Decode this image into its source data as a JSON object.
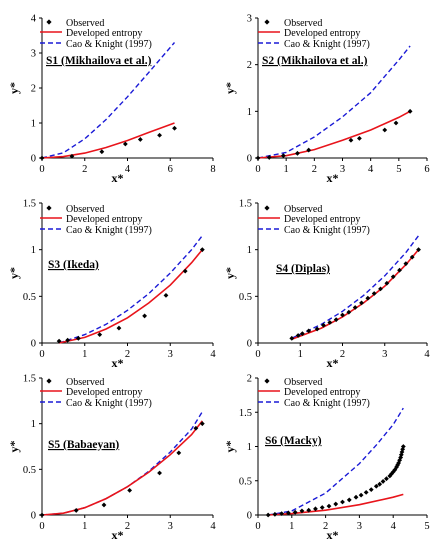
{
  "legend": {
    "observed": "Observed",
    "developed": "Developed entropy",
    "cao": "Cao & Knight (1997)"
  },
  "colors": {
    "observed": "#000000",
    "developed": "#e8141b",
    "cao": "#1a1ad6"
  },
  "chart_data": [
    {
      "type": "line",
      "label": "S1 (Mikhailova et al.)",
      "xlabel": "x*",
      "ylabel": "y*",
      "xlim": [
        0,
        8
      ],
      "ylim": [
        0,
        4
      ],
      "xticks": [
        0,
        2,
        4,
        6,
        8
      ],
      "yticks": [
        0,
        1,
        2,
        3,
        4
      ],
      "series": [
        {
          "name": "Observed",
          "x": [
            0,
            1.4,
            2.8,
            3.9,
            4.6,
            5.5,
            6.2
          ],
          "y": [
            0,
            0.05,
            0.18,
            0.4,
            0.53,
            0.65,
            0.85
          ]
        },
        {
          "name": "Developed entropy",
          "x": [
            0,
            1,
            2,
            3,
            4,
            5,
            6.2
          ],
          "y": [
            0,
            0.04,
            0.14,
            0.3,
            0.5,
            0.73,
            1.0
          ]
        },
        {
          "name": "Cao & Knight (1997)",
          "x": [
            0,
            1,
            2,
            3,
            4,
            5,
            6.2
          ],
          "y": [
            0,
            0.15,
            0.55,
            1.1,
            1.75,
            2.45,
            3.3
          ]
        }
      ]
    },
    {
      "type": "line",
      "label": "S2 (Mikhailova et al.)",
      "xlabel": "x*",
      "ylabel": "y*",
      "xlim": [
        0,
        6
      ],
      "ylim": [
        0,
        3
      ],
      "xticks": [
        0,
        1,
        2,
        3,
        4,
        5,
        6
      ],
      "yticks": [
        0,
        1,
        2,
        3
      ],
      "series": [
        {
          "name": "Observed",
          "x": [
            0,
            0.4,
            0.9,
            1.4,
            1.8,
            3.3,
            3.6,
            4.5,
            4.9,
            5.4
          ],
          "y": [
            0,
            0.01,
            0.05,
            0.1,
            0.17,
            0.38,
            0.42,
            0.6,
            0.75,
            1.0
          ]
        },
        {
          "name": "Developed entropy",
          "x": [
            0,
            1,
            2,
            3,
            4,
            5,
            5.4
          ],
          "y": [
            0,
            0.05,
            0.18,
            0.38,
            0.6,
            0.87,
            1.0
          ]
        },
        {
          "name": "Cao & Knight (1997)",
          "x": [
            0,
            1,
            2,
            3,
            4,
            5,
            5.4
          ],
          "y": [
            0,
            0.12,
            0.45,
            0.88,
            1.4,
            2.1,
            2.4
          ]
        }
      ]
    },
    {
      "type": "line",
      "label": "S3 (Ikeda)",
      "xlabel": "x*",
      "ylabel": "y*",
      "xlim": [
        0,
        4
      ],
      "ylim": [
        0,
        1.5
      ],
      "xticks": [
        0,
        1,
        2,
        3,
        4
      ],
      "yticks": [
        0,
        0.5,
        1,
        1.5
      ],
      "series": [
        {
          "name": "Observed",
          "x": [
            0.4,
            0.6,
            0.85,
            1.35,
            1.8,
            2.4,
            2.9,
            3.35,
            3.75
          ],
          "y": [
            0.02,
            0.03,
            0.05,
            0.09,
            0.16,
            0.29,
            0.51,
            0.77,
            1.0
          ]
        },
        {
          "name": "Developed entropy",
          "x": [
            0.4,
            1,
            1.5,
            2,
            2.5,
            3,
            3.5,
            3.75
          ],
          "y": [
            0,
            0.06,
            0.15,
            0.27,
            0.43,
            0.62,
            0.86,
            1.0
          ]
        },
        {
          "name": "Cao & Knight (1997)",
          "x": [
            0.4,
            1,
            1.5,
            2,
            2.5,
            3,
            3.5,
            3.75
          ],
          "y": [
            0,
            0.09,
            0.2,
            0.35,
            0.53,
            0.75,
            1.0,
            1.15
          ]
        }
      ]
    },
    {
      "type": "line",
      "label": "S4 (Diplas)",
      "xlabel": "x*",
      "ylabel": "y*",
      "xlim": [
        0,
        4
      ],
      "ylim": [
        0,
        1.5
      ],
      "xticks": [
        0,
        1,
        2,
        3,
        4
      ],
      "yticks": [
        0,
        0.5,
        1,
        1.5
      ],
      "series": [
        {
          "name": "Observed",
          "x": [
            0.8,
            0.95,
            1.05,
            1.2,
            1.4,
            1.55,
            1.7,
            1.85,
            2.0,
            2.15,
            2.3,
            2.45,
            2.6,
            2.75,
            2.9,
            3.05,
            3.2,
            3.35,
            3.5,
            3.65,
            3.8
          ],
          "y": [
            0.05,
            0.08,
            0.1,
            0.13,
            0.15,
            0.19,
            0.22,
            0.25,
            0.3,
            0.33,
            0.38,
            0.43,
            0.48,
            0.53,
            0.58,
            0.64,
            0.71,
            0.78,
            0.85,
            0.92,
            1.0
          ]
        },
        {
          "name": "Developed entropy",
          "x": [
            0.8,
            1.5,
            2,
            2.5,
            3,
            3.5,
            3.8
          ],
          "y": [
            0.04,
            0.16,
            0.28,
            0.43,
            0.61,
            0.84,
            1.0
          ]
        },
        {
          "name": "Cao & Knight (1997)",
          "x": [
            0.8,
            1.5,
            2,
            2.5,
            3,
            3.5,
            3.8
          ],
          "y": [
            0.05,
            0.2,
            0.34,
            0.51,
            0.72,
            0.97,
            1.15
          ]
        }
      ]
    },
    {
      "type": "line",
      "label": "S5 (Babaeyan)",
      "xlabel": "x*",
      "ylabel": "y*",
      "xlim": [
        0,
        4
      ],
      "ylim": [
        0,
        1.5
      ],
      "xticks": [
        0,
        1,
        2,
        3,
        4
      ],
      "yticks": [
        0,
        0.5,
        1,
        1.5
      ],
      "series": [
        {
          "name": "Observed",
          "x": [
            0,
            0.8,
            1.45,
            2.05,
            2.75,
            3.2,
            3.6,
            3.75
          ],
          "y": [
            0,
            0.05,
            0.11,
            0.27,
            0.46,
            0.68,
            0.95,
            1.0
          ]
        },
        {
          "name": "Developed entropy",
          "x": [
            0,
            0.5,
            1,
            1.5,
            2,
            2.5,
            3,
            3.5,
            3.75
          ],
          "y": [
            0,
            0.02,
            0.08,
            0.18,
            0.31,
            0.47,
            0.66,
            0.88,
            1.03
          ]
        },
        {
          "name": "Cao & Knight (1997)",
          "x": [
            0,
            0.5,
            1,
            1.5,
            2,
            2.5,
            3,
            3.5,
            3.75
          ],
          "y": [
            0,
            0.02,
            0.08,
            0.18,
            0.31,
            0.48,
            0.69,
            0.94,
            1.13
          ]
        }
      ]
    },
    {
      "type": "line",
      "label": "S6 (Macky)",
      "xlabel": "x*",
      "ylabel": "y*",
      "xlim": [
        0,
        5
      ],
      "ylim": [
        0,
        2
      ],
      "xticks": [
        0,
        1,
        2,
        3,
        4,
        5
      ],
      "yticks": [
        0,
        0.5,
        1,
        1.5,
        2
      ],
      "series": [
        {
          "name": "Observed",
          "x": [
            0.3,
            0.5,
            0.7,
            0.9,
            1.1,
            1.3,
            1.5,
            1.7,
            1.9,
            2.1,
            2.3,
            2.5,
            2.7,
            2.9,
            3.05,
            3.2,
            3.35,
            3.5,
            3.6,
            3.7,
            3.8,
            3.9,
            3.95,
            4.0,
            4.05,
            4.1,
            4.13,
            4.16,
            4.19,
            4.22,
            4.24,
            4.26,
            4.28,
            4.3
          ],
          "y": [
            0,
            0.01,
            0.02,
            0.03,
            0.04,
            0.06,
            0.07,
            0.09,
            0.11,
            0.13,
            0.16,
            0.19,
            0.22,
            0.26,
            0.29,
            0.33,
            0.37,
            0.42,
            0.45,
            0.49,
            0.53,
            0.57,
            0.6,
            0.63,
            0.66,
            0.7,
            0.73,
            0.76,
            0.8,
            0.84,
            0.88,
            0.92,
            0.96,
            1.0
          ]
        },
        {
          "name": "Developed entropy",
          "x": [
            0.3,
            1,
            2,
            3,
            4,
            4.3
          ],
          "y": [
            0,
            0.02,
            0.07,
            0.15,
            0.26,
            0.3
          ]
        },
        {
          "name": "Cao & Knight (1997)",
          "x": [
            0.3,
            1,
            2,
            3,
            3.5,
            4,
            4.3
          ],
          "y": [
            0,
            0.06,
            0.32,
            0.75,
            1.02,
            1.32,
            1.56
          ]
        }
      ]
    }
  ]
}
